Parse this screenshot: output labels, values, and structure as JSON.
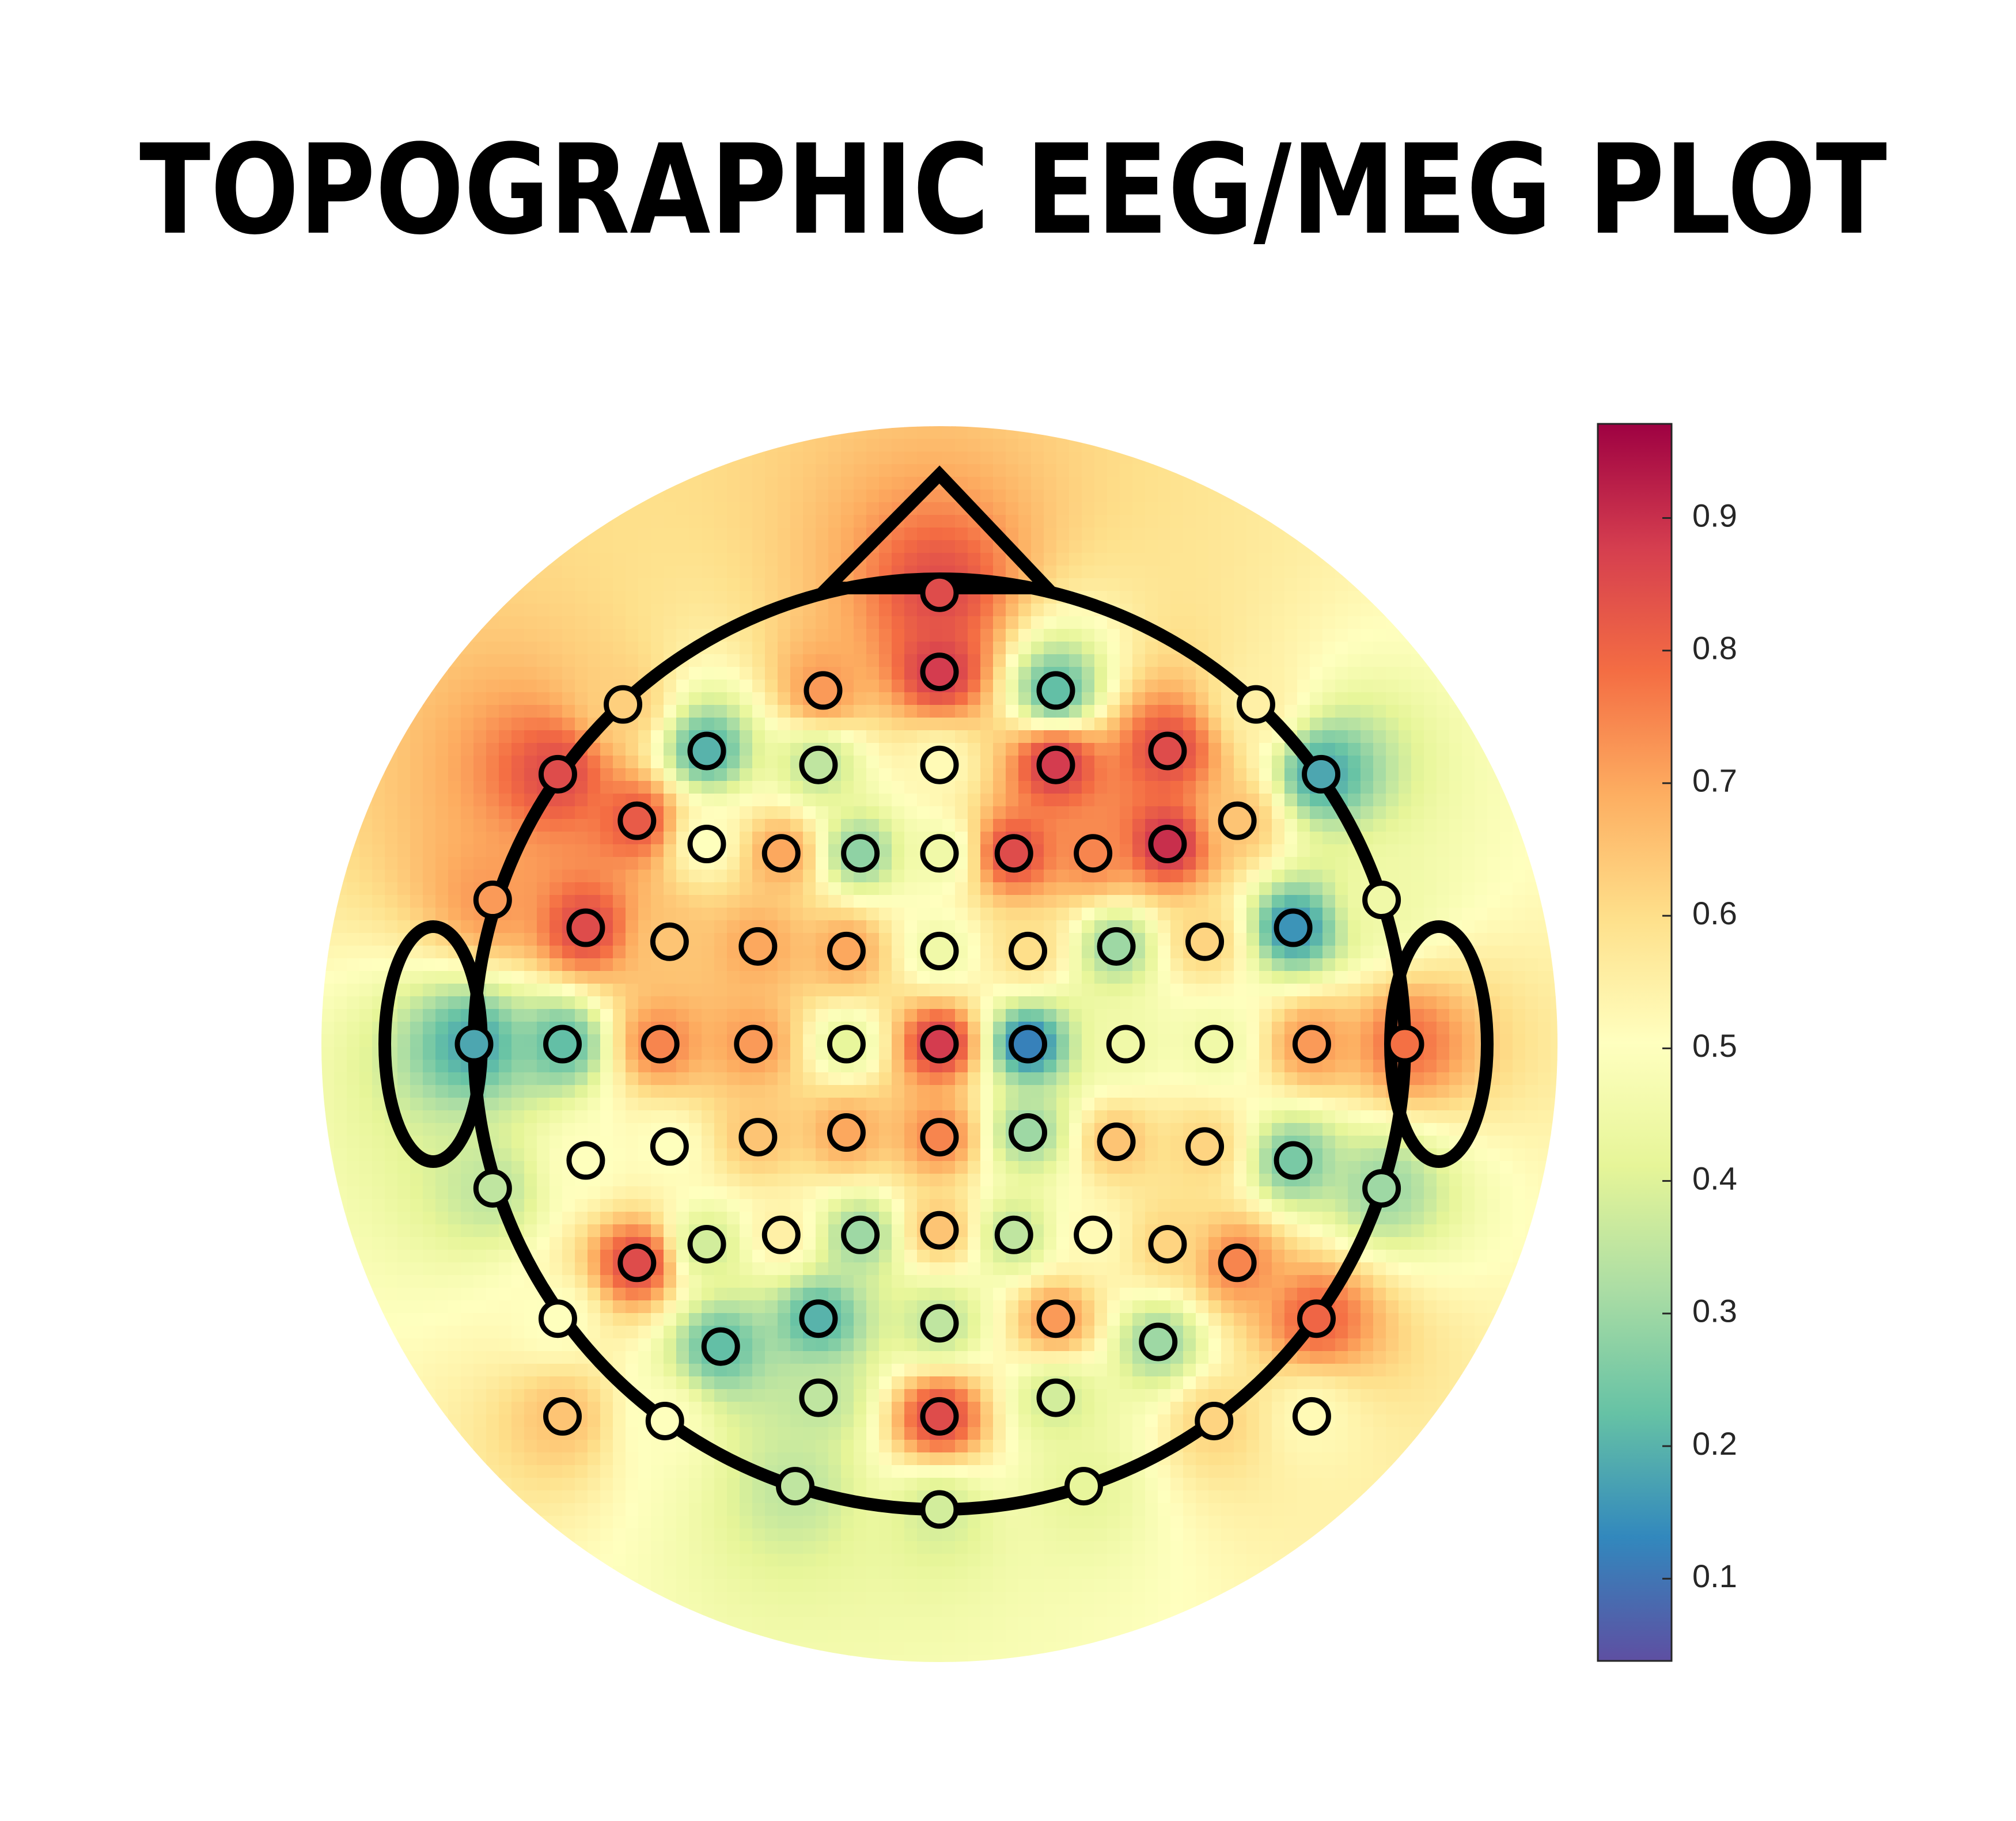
{
  "chart_data": {
    "type": "topoplot",
    "title": "TOPOGRAPHIC EEG/MEG PLOT",
    "electrodes": {
      "x": [
        0,
        0,
        -0.25,
        0.25,
        -0.68,
        0.68,
        -0.5,
        -0.26,
        0,
        0.25,
        0.49,
        -0.82,
        0.82,
        -0.65,
        0.64,
        -0.5,
        -0.34,
        -0.17,
        0,
        0.16,
        0.33,
        0.49,
        -0.96,
        0.95,
        -0.76,
        -0.58,
        -0.39,
        -0.2,
        0,
        0.19,
        0.38,
        0.57,
        0.76,
        -1.0,
        -0.81,
        -0.6,
        -0.4,
        -0.2,
        0,
        0.19,
        0.4,
        0.59,
        0.8,
        1.0,
        -0.76,
        -0.58,
        -0.39,
        -0.2,
        0,
        0.19,
        0.38,
        0.57,
        0.76,
        -0.96,
        0.95,
        -0.65,
        -0.5,
        -0.34,
        -0.17,
        0,
        0.16,
        0.33,
        0.49,
        0.64,
        -0.82,
        0.81,
        -0.47,
        -0.26,
        0,
        0.25,
        0.47,
        -0.81,
        -0.59,
        -0.26,
        0,
        0.25,
        0.59,
        0.8,
        -0.31,
        0.31,
        0
      ],
      "y": [
        0.97,
        0.8,
        0.76,
        0.76,
        0.73,
        0.73,
        0.63,
        0.6,
        0.6,
        0.6,
        0.63,
        0.58,
        0.58,
        0.48,
        0.48,
        0.43,
        0.41,
        0.41,
        0.41,
        0.41,
        0.41,
        0.43,
        0.31,
        0.31,
        0.25,
        0.22,
        0.21,
        0.2,
        0.2,
        0.2,
        0.21,
        0.22,
        0.25,
        0,
        0,
        0,
        0,
        0,
        0,
        0,
        0,
        0,
        0,
        0,
        -0.25,
        -0.22,
        -0.2,
        -0.19,
        -0.2,
        -0.19,
        -0.21,
        -0.22,
        -0.25,
        -0.31,
        -0.31,
        -0.47,
        -0.43,
        -0.41,
        -0.41,
        -0.4,
        -0.41,
        -0.41,
        -0.43,
        -0.47,
        -0.59,
        -0.59,
        -0.65,
        -0.59,
        -0.6,
        -0.59,
        -0.64,
        -0.8,
        -0.81,
        -0.76,
        -0.8,
        -0.76,
        -0.81,
        -0.8,
        -0.95,
        -0.95,
        -1.0
      ],
      "values": [
        0.85,
        0.88,
        0.72,
        0.22,
        0.63,
        0.55,
        0.2,
        0.35,
        0.52,
        0.88,
        0.85,
        0.85,
        0.18,
        0.82,
        0.65,
        0.5,
        0.7,
        0.28,
        0.45,
        0.85,
        0.75,
        0.9,
        0.72,
        0.45,
        0.85,
        0.65,
        0.7,
        0.7,
        0.45,
        0.6,
        0.3,
        0.62,
        0.15,
        0.18,
        0.22,
        0.75,
        0.72,
        0.42,
        0.88,
        0.12,
        0.45,
        0.45,
        0.72,
        0.78,
        0.5,
        0.5,
        0.65,
        0.7,
        0.75,
        0.3,
        0.65,
        0.62,
        0.25,
        0.35,
        0.3,
        0.85,
        0.38,
        0.55,
        0.3,
        0.65,
        0.35,
        0.52,
        0.62,
        0.75,
        0.5,
        0.8,
        0.22,
        0.2,
        0.35,
        0.72,
        0.3,
        0.65,
        0.5,
        0.35,
        0.85,
        0.38,
        0.62,
        0.52,
        0.35,
        0.42,
        0.38
      ]
    },
    "colormap": [
      "#5e4fa2",
      "#3288bd",
      "#66c2a5",
      "#abdda4",
      "#e6f598",
      "#ffffbf",
      "#fee08b",
      "#fdae61",
      "#f46d43",
      "#d53e4f",
      "#9e0142"
    ],
    "clim": [
      0.038,
      0.971
    ],
    "cticks": [
      0.1,
      0.2,
      0.3,
      0.4,
      0.5,
      0.6,
      0.7,
      0.8,
      0.9
    ]
  }
}
